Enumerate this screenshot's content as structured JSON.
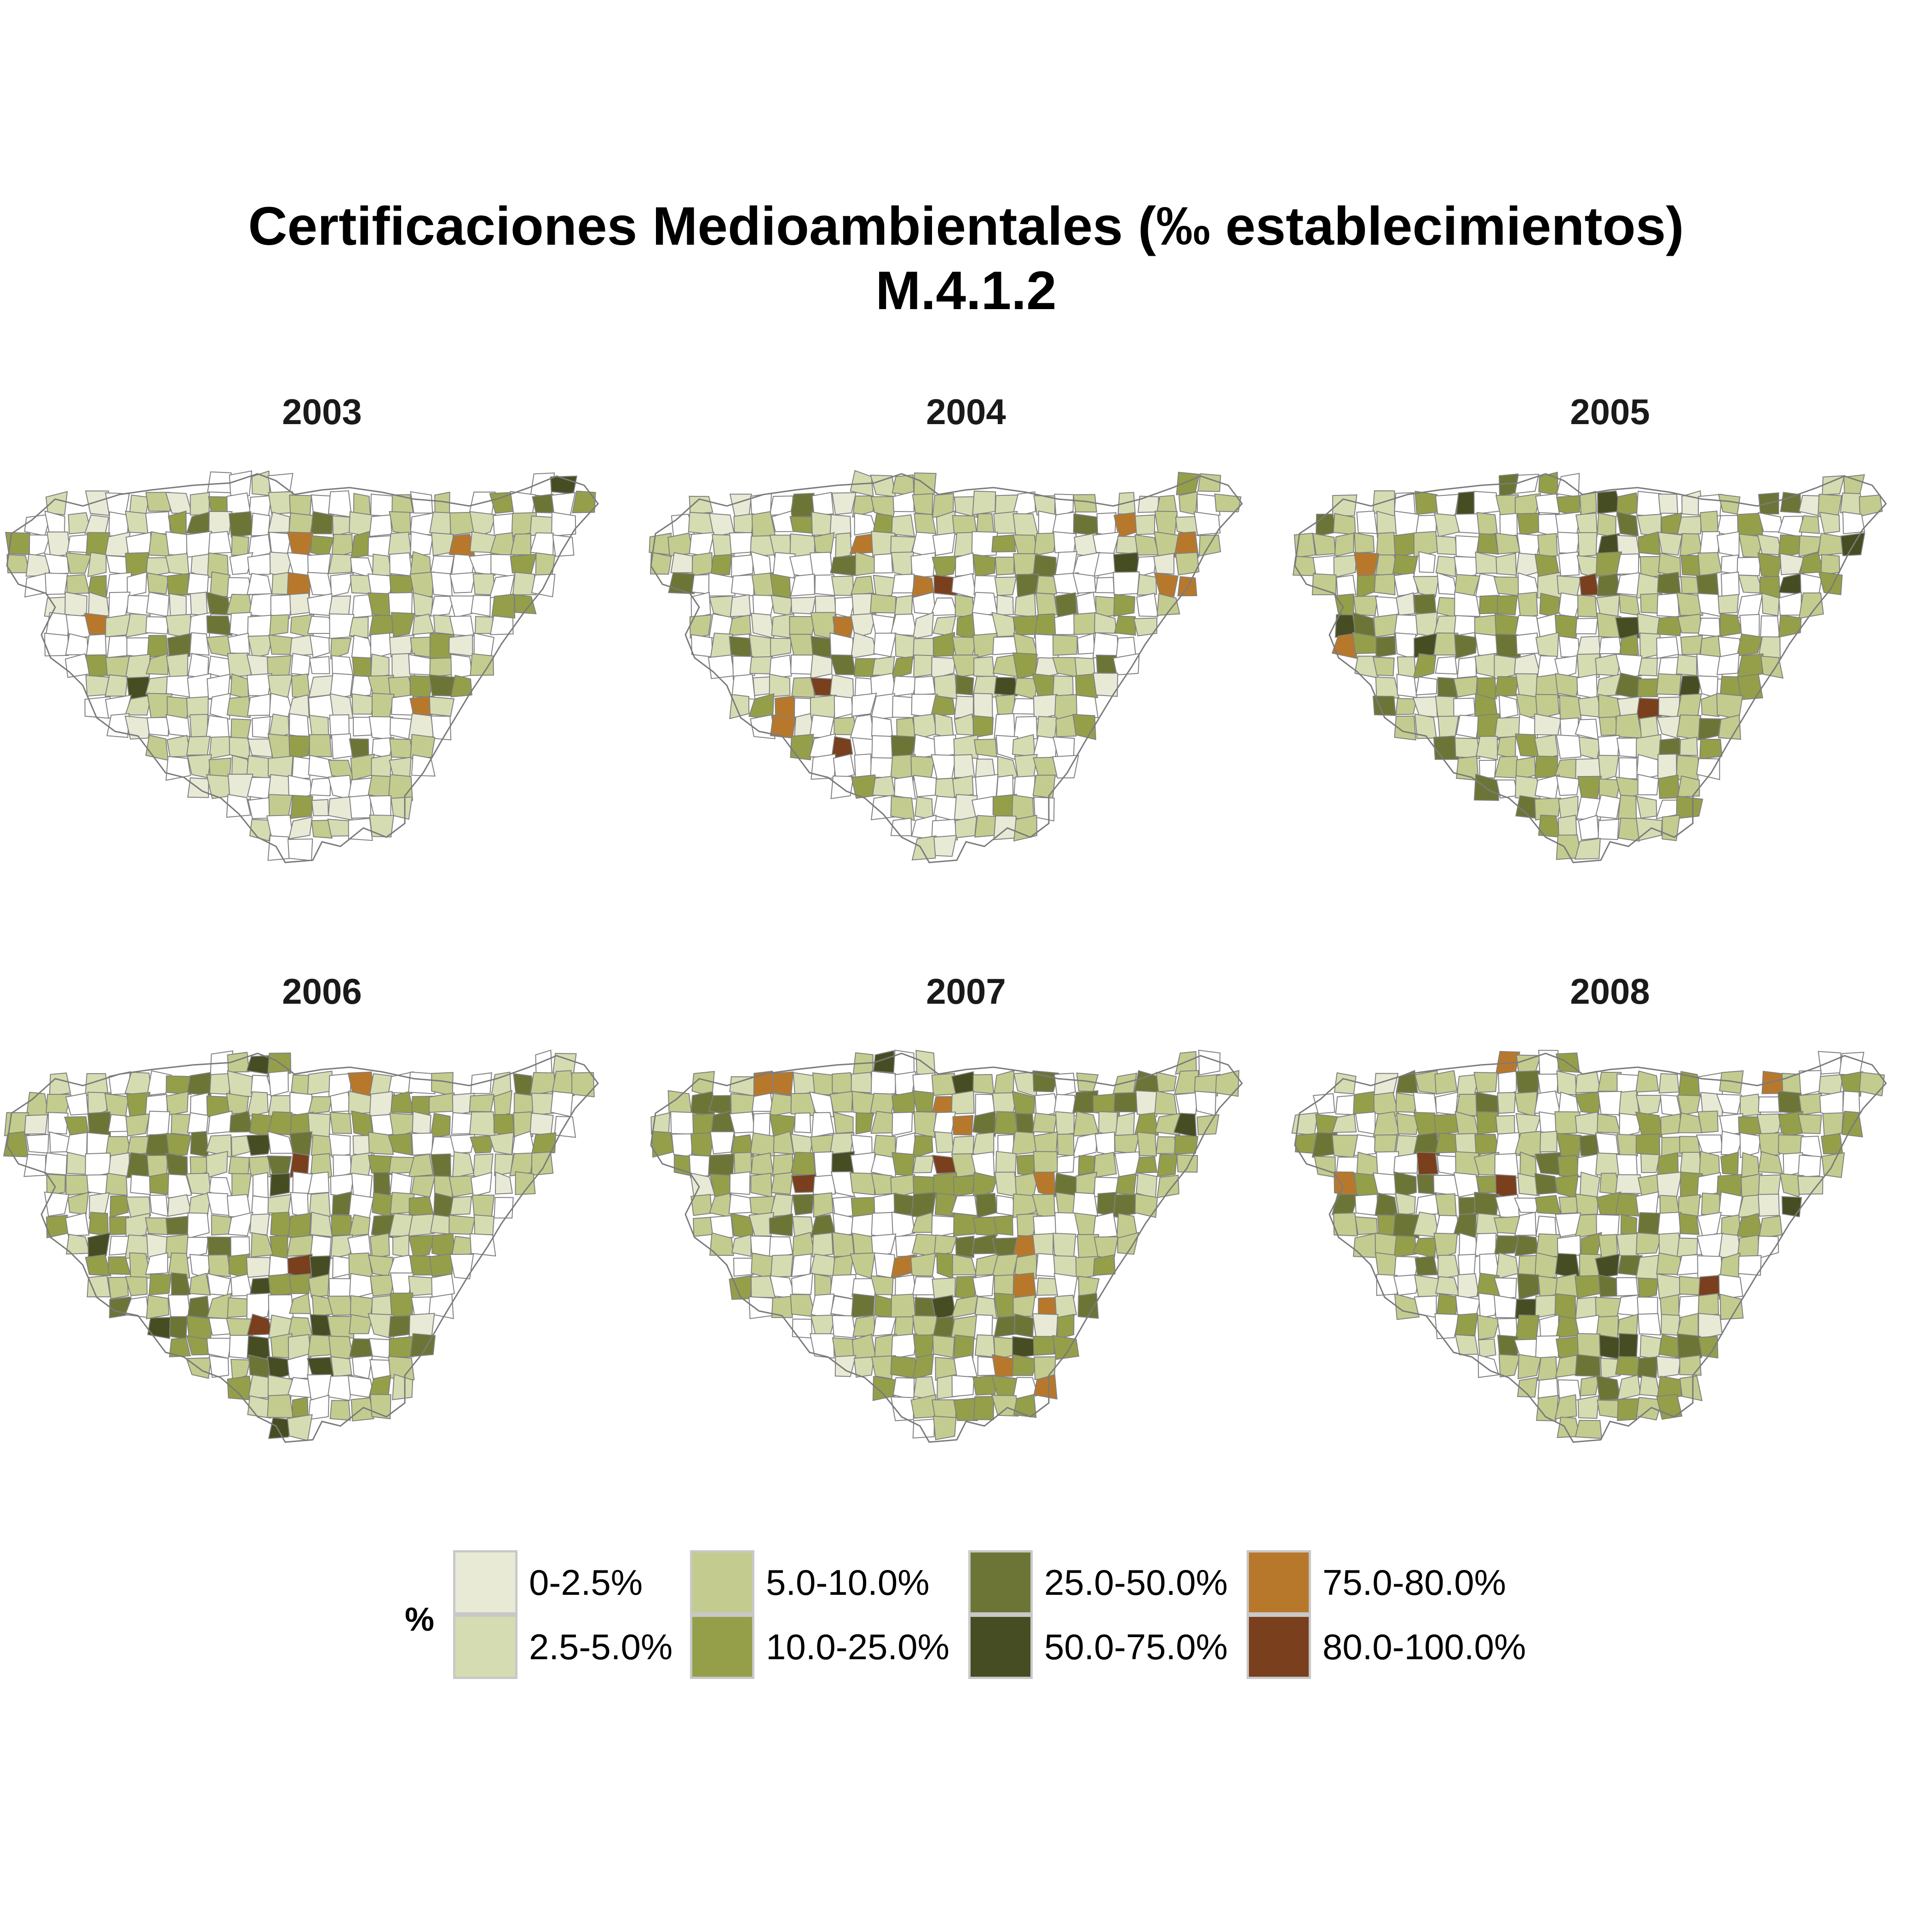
{
  "title": {
    "line1": "Certificaciones Medioambientales (‰ establecimientos)",
    "line2": "M.4.1.2"
  },
  "panels": [
    {
      "year": "2003"
    },
    {
      "year": "2004"
    },
    {
      "year": "2005"
    },
    {
      "year": "2006"
    },
    {
      "year": "2007"
    },
    {
      "year": "2008"
    }
  ],
  "legend": {
    "title": "%",
    "classes": [
      {
        "label": "0-2.5%",
        "color": "#e8ead6"
      },
      {
        "label": "2.5-5.0%",
        "color": "#d6dcb2"
      },
      {
        "label": "5.0-10.0%",
        "color": "#c3cc8e"
      },
      {
        "label": "10.0-25.0%",
        "color": "#959f49"
      },
      {
        "label": "25.0-50.0%",
        "color": "#6c7536"
      },
      {
        "label": "50.0-75.0%",
        "color": "#474d22"
      },
      {
        "label": "75.0-80.0%",
        "color": "#b8782b"
      },
      {
        "label": "80.0-100.0%",
        "color": "#7a3f1c"
      }
    ]
  }
}
